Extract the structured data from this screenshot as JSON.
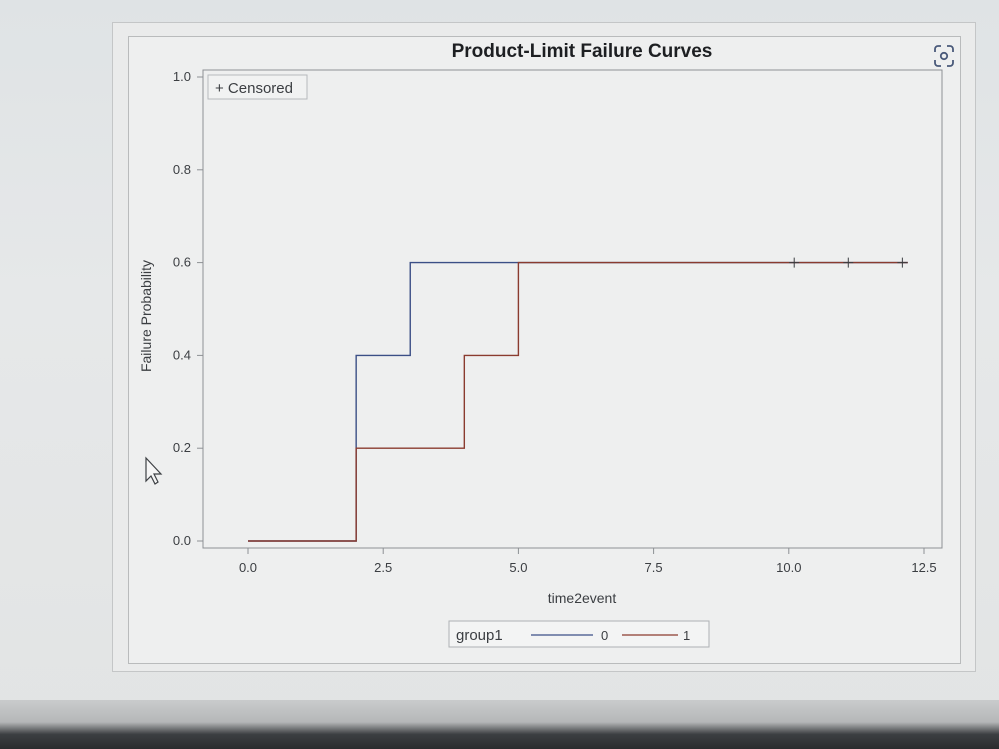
{
  "chart_data": {
    "type": "line",
    "title": "Product-Limit Failure Curves",
    "xlabel": "time2event",
    "ylabel": "Failure Probability",
    "xlim": [
      -0.7,
      12.6
    ],
    "ylim": [
      0,
      1.0
    ],
    "x_ticks": [
      0.0,
      2.5,
      5.0,
      7.5,
      10.0,
      12.5
    ],
    "x_tick_labels": [
      "0.0",
      "2.5",
      "5.0",
      "7.5",
      "10.0",
      "12.5"
    ],
    "y_ticks": [
      0.0,
      0.2,
      0.4,
      0.6,
      0.8,
      1.0
    ],
    "y_tick_labels": [
      "0.0",
      "0.2",
      "0.4",
      "0.6",
      "0.8",
      "1.0"
    ],
    "step": true,
    "legend": {
      "title": "group1",
      "placement": "bottom"
    },
    "censored_label": "+ Censored",
    "series": [
      {
        "name": "0",
        "color": "#3b4f86",
        "x": [
          0.0,
          2.0,
          3.0,
          12.2
        ],
        "y": [
          0.0,
          0.4,
          0.6,
          0.6
        ]
      },
      {
        "name": "1",
        "color": "#8a3b2f",
        "x": [
          0.0,
          2.0,
          4.0,
          5.0,
          12.2
        ],
        "y": [
          0.0,
          0.2,
          0.4,
          0.6,
          0.6
        ]
      }
    ],
    "censored_points": [
      {
        "x": 10.1,
        "y": 0.6
      },
      {
        "x": 11.1,
        "y": 0.6
      },
      {
        "x": 12.1,
        "y": 0.6
      }
    ]
  }
}
